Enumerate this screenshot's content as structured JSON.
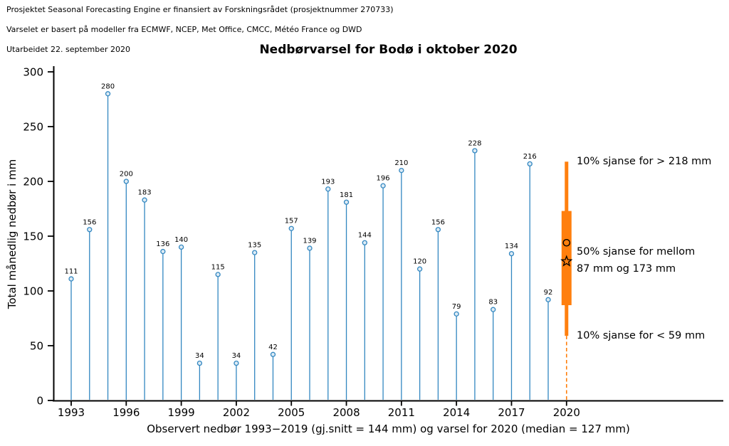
{
  "header": {
    "line1": "Prosjektet Seasonal Forecasting Engine er finansiert av Forskningsrådet (prosjektnummer 270733)",
    "line2": "Varselet er basert på modeller fra ECMWF, NCEP, Met Office, CMCC, Météo France og DWD",
    "line3": "Utarbeidet 22. september 2020"
  },
  "chart_data": {
    "type": "stem",
    "title": "Nedbørvarsel for Bodø i oktober 2020",
    "ylabel": "Total månedlig nedbør i mm",
    "xlabel": "Observert nedbør 1993−2019 (gj.snitt = 144 mm) og varsel for 2020 (median = 127 mm)",
    "ylim": [
      0,
      300
    ],
    "yticks": [
      0,
      50,
      100,
      150,
      200,
      250,
      300
    ],
    "xticks": [
      1993,
      1996,
      1999,
      2002,
      2005,
      2008,
      2011,
      2014,
      2017,
      2020
    ],
    "grid": false,
    "observations": {
      "years": [
        1993,
        1994,
        1995,
        1996,
        1997,
        1998,
        1999,
        2000,
        2001,
        2002,
        2003,
        2004,
        2005,
        2006,
        2007,
        2008,
        2009,
        2010,
        2011,
        2012,
        2013,
        2014,
        2015,
        2016,
        2017,
        2018,
        2019
      ],
      "values": [
        111,
        156,
        280,
        200,
        183,
        136,
        140,
        34,
        115,
        34,
        135,
        42,
        157,
        139,
        193,
        181,
        144,
        196,
        210,
        120,
        156,
        79,
        228,
        83,
        134,
        216,
        92
      ]
    },
    "forecast": {
      "year": 2020,
      "p10_high": 218,
      "p50_high": 173,
      "circle_marker_value": 144,
      "star_marker_value": 127,
      "p50_low": 87,
      "p10_low": 59,
      "annotations": {
        "high": "10% sjanse for > 218 mm",
        "mid1": "50% sjanse for mellom",
        "mid2": "87 mm og 173 mm",
        "low": "10% sjanse for < 59 mm"
      }
    },
    "colors": {
      "stem": "#3287c1",
      "stem_marker_fill": "#ddebf5",
      "forecast": "#ff7f0e",
      "axis": "#000000",
      "value_label": "#1a1a1a"
    }
  }
}
